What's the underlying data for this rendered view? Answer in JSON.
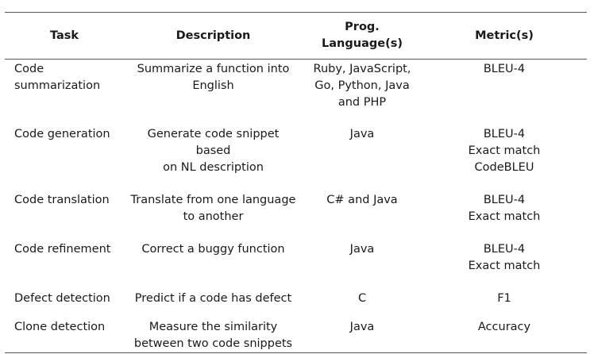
{
  "table": {
    "headers": {
      "task": "Task",
      "description": "Description",
      "language_line1": "Prog.",
      "language_line2": "Language(s)",
      "metric": "Metric(s)"
    },
    "rows": [
      {
        "task": [
          "Code",
          "summarization"
        ],
        "description": [
          "Summarize a function into",
          "English"
        ],
        "language": [
          "Ruby, JavaScript,",
          "Go, Python, Java",
          "and PHP"
        ],
        "metric": [
          "BLEU-4"
        ]
      },
      {
        "task": [
          "Code generation"
        ],
        "description": [
          "Generate code snippet based",
          "on NL description"
        ],
        "language": [
          "Java"
        ],
        "metric": [
          "BLEU-4",
          "Exact match",
          "CodeBLEU"
        ]
      },
      {
        "task": [
          "Code translation"
        ],
        "description": [
          "Translate from one language",
          "to another"
        ],
        "language": [
          "C# and Java"
        ],
        "metric": [
          "BLEU-4",
          "Exact match"
        ]
      },
      {
        "task": [
          "Code refinement"
        ],
        "description": [
          "Correct a buggy function"
        ],
        "language": [
          "Java"
        ],
        "metric": [
          "BLEU-4",
          "Exact match"
        ]
      },
      {
        "task": [
          "Defect detection"
        ],
        "description": [
          "Predict if a code has defect"
        ],
        "language": [
          "C"
        ],
        "metric": [
          "F1"
        ]
      },
      {
        "task": [
          "Clone detection"
        ],
        "description": [
          "Measure the similarity",
          "between two code snippets"
        ],
        "language": [
          "Java"
        ],
        "metric": [
          "Accuracy"
        ]
      }
    ]
  }
}
